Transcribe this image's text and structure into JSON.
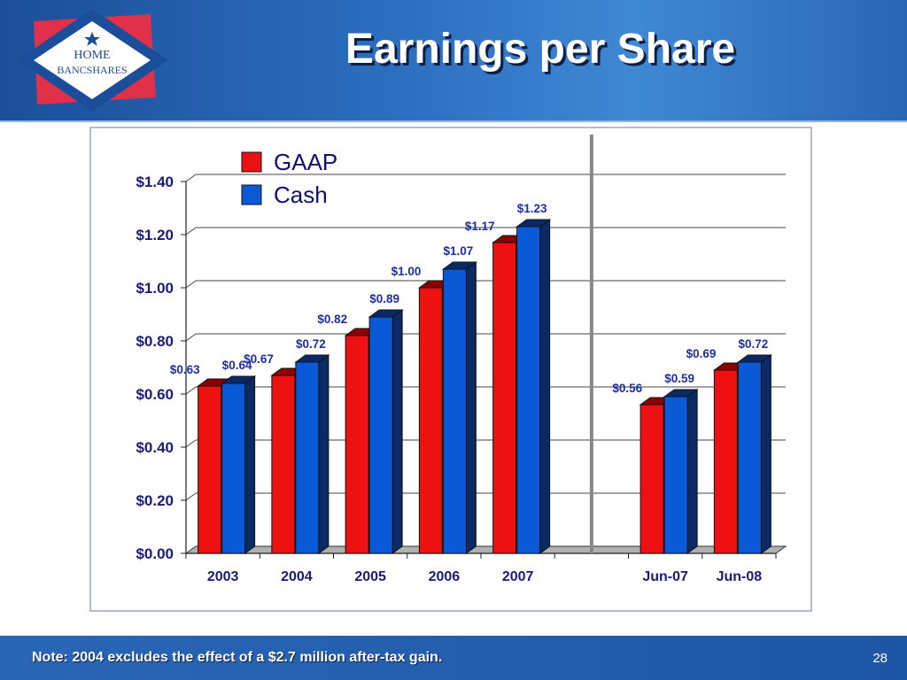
{
  "slide": {
    "title": "Earnings per Share",
    "note": "Note: 2004 excludes the effect of a $2.7 million after-tax gain.",
    "page_number": "28"
  },
  "logo": {
    "text_line1": "HOME",
    "text_line2": "BANCSHARES",
    "colors": {
      "diamond": "#1a4d9a",
      "backing": "#e0304a",
      "star": "#1a4d9a"
    }
  },
  "chart_data": {
    "type": "bar",
    "categories": [
      "2003",
      "2004",
      "2005",
      "2006",
      "2007",
      "Jun-07",
      "Jun-08"
    ],
    "series": [
      {
        "name": "GAAP",
        "values": [
          0.63,
          0.67,
          0.82,
          1.0,
          1.17,
          0.56,
          0.69
        ],
        "labels": [
          "$0.63",
          "$0.67",
          "$0.82",
          "$1.00",
          "$1.17",
          "$0.56",
          "$0.69"
        ],
        "color": "#ee1111",
        "shade": "#8a0000"
      },
      {
        "name": "Cash",
        "values": [
          0.64,
          0.72,
          0.89,
          1.07,
          1.23,
          0.59,
          0.72
        ],
        "labels": [
          "$0.64",
          "$0.72",
          "$0.89",
          "$1.07",
          "$1.23",
          "$0.59",
          "$0.72"
        ],
        "color": "#0a5ad8",
        "shade": "#0a2a66"
      }
    ],
    "y_ticks": [
      "$0.00",
      "$0.20",
      "$0.40",
      "$0.60",
      "$0.80",
      "$1.00",
      "$1.20",
      "$1.40"
    ],
    "ylim": [
      0,
      1.4
    ],
    "grid": true,
    "legend_position": "top-left",
    "three_d": true,
    "separator_between": [
      "2007",
      "Jun-07"
    ]
  }
}
